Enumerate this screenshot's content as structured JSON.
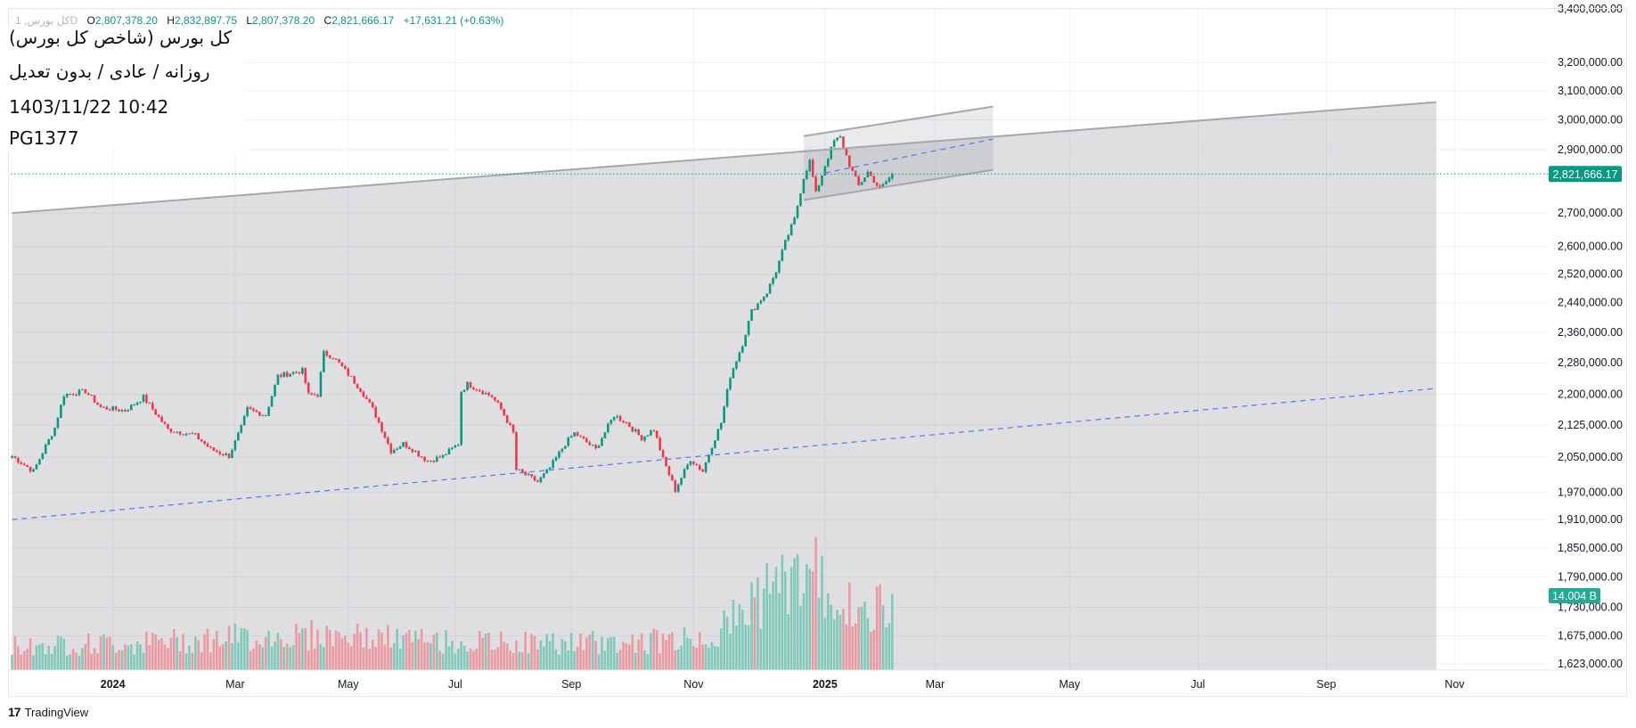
{
  "legend": {
    "symbol": "کل بورس, 1D",
    "open_label": "O",
    "open": "2,807,378.20",
    "high_label": "H",
    "high": "2,832,897.75",
    "low_label": "L",
    "low": "2,807,378.20",
    "close_label": "C",
    "close": "2,821,666.17",
    "change": "+17,631.21 (+0.63%)"
  },
  "overlay": {
    "title": "کل بورس (شاخص کل بورس)",
    "subtitle": "روزانه / عادی / بدون تعدیل",
    "datetime": "1403/11/22 10:42",
    "code": "PG1377"
  },
  "branding": {
    "name": "TradingView",
    "logo_mark": "17"
  },
  "colors": {
    "up": "#089981",
    "down": "#f23645",
    "up_vol": "#7fcab9",
    "down_vol": "#ec9aa1",
    "price_label": "#089981",
    "vol_label": "#22ab94",
    "trend_dashed": "#5b7ff0"
  },
  "chart_data": {
    "type": "candlestick",
    "scale": "log",
    "ylim": [
      1623000,
      3400000
    ],
    "y_ticks": [
      "3,400,000.00",
      "3,200,000.00",
      "3,100,000.00",
      "3,000,000.00",
      "2,900,000.00",
      "2,700,000.00",
      "2,600,000.00",
      "2,520,000.00",
      "2,440,000.00",
      "2,360,000.00",
      "2,280,000.00",
      "2,200,000.00",
      "2,125,000.00",
      "2,050,000.00",
      "1,970,000.00",
      "1,910,000.00",
      "1,850,000.00",
      "1,790,000.00",
      "1,730,000.00",
      "1,675,000.00",
      "1,623,000.00"
    ],
    "x_ticks": [
      {
        "label": "2024",
        "bar": 33
      },
      {
        "label": "Mar",
        "bar": 73
      },
      {
        "label": "May",
        "bar": 110
      },
      {
        "label": "Jul",
        "bar": 145
      },
      {
        "label": "Sep",
        "bar": 183
      },
      {
        "label": "Nov",
        "bar": 223
      },
      {
        "label": "2025",
        "bar": 266
      },
      {
        "label": "Mar",
        "bar": 302
      },
      {
        "label": "May",
        "bar": 346
      },
      {
        "label": "Jul",
        "bar": 388
      },
      {
        "label": "Sep",
        "bar": 430
      },
      {
        "label": "Nov",
        "bar": 472
      }
    ],
    "bar_count": 289,
    "close_path": [
      [
        0,
        2052000
      ],
      [
        7,
        2017000
      ],
      [
        14,
        2119000
      ],
      [
        17,
        2199000
      ],
      [
        24,
        2208000
      ],
      [
        29,
        2168000
      ],
      [
        37,
        2160000
      ],
      [
        43,
        2193000
      ],
      [
        48,
        2144000
      ],
      [
        51,
        2115000
      ],
      [
        60,
        2100000
      ],
      [
        65,
        2068000
      ],
      [
        71,
        2052000
      ],
      [
        75,
        2119000
      ],
      [
        77,
        2164000
      ],
      [
        83,
        2149000
      ],
      [
        87,
        2246000
      ],
      [
        95,
        2260000
      ],
      [
        97,
        2199000
      ],
      [
        100,
        2199000
      ],
      [
        102,
        2305000
      ],
      [
        105,
        2296000
      ],
      [
        109,
        2260000
      ],
      [
        114,
        2212000
      ],
      [
        118,
        2164000
      ],
      [
        121,
        2115000
      ],
      [
        124,
        2064000
      ],
      [
        128,
        2081000
      ],
      [
        131,
        2068000
      ],
      [
        136,
        2040000
      ],
      [
        141,
        2052000
      ],
      [
        146,
        2081000
      ],
      [
        147,
        2208000
      ],
      [
        149,
        2226000
      ],
      [
        157,
        2195000
      ],
      [
        160,
        2164000
      ],
      [
        164,
        2106000
      ],
      [
        165,
        2021000
      ],
      [
        172,
        1993000
      ],
      [
        176,
        2025000
      ],
      [
        181,
        2081000
      ],
      [
        184,
        2106000
      ],
      [
        191,
        2068000
      ],
      [
        197,
        2149000
      ],
      [
        201,
        2131000
      ],
      [
        206,
        2094000
      ],
      [
        210,
        2115000
      ],
      [
        213,
        2045000
      ],
      [
        217,
        1975000
      ],
      [
        222,
        2045000
      ],
      [
        226,
        2017000
      ],
      [
        228,
        2058000
      ],
      [
        232,
        2131000
      ],
      [
        235,
        2246000
      ],
      [
        239,
        2329000
      ],
      [
        242,
        2417000
      ],
      [
        247,
        2469000
      ],
      [
        250,
        2529000
      ],
      [
        253,
        2612000
      ],
      [
        256,
        2681000
      ],
      [
        259,
        2811000
      ],
      [
        261,
        2863000
      ],
      [
        263,
        2760000
      ],
      [
        266,
        2850000
      ],
      [
        269,
        2929000
      ],
      [
        271,
        2940000
      ],
      [
        274,
        2850000
      ],
      [
        277,
        2785000
      ],
      [
        280,
        2828000
      ],
      [
        284,
        2773000
      ],
      [
        288,
        2821666.17
      ]
    ],
    "volume_path_billions": [
      [
        0,
        4.5
      ],
      [
        40,
        5
      ],
      [
        75,
        6
      ],
      [
        100,
        6.5
      ],
      [
        150,
        5
      ],
      [
        200,
        5
      ],
      [
        228,
        6
      ],
      [
        236,
        9
      ],
      [
        242,
        13
      ],
      [
        250,
        15
      ],
      [
        258,
        18
      ],
      [
        264,
        17
      ],
      [
        272,
        12
      ],
      [
        280,
        9
      ],
      [
        288,
        14.004
      ]
    ],
    "last_price_label": "2,821,666.17",
    "last_volume_label": "14.004 B",
    "drawings": {
      "main_channel_top": [
        [
          0,
          2700000
        ],
        [
          466,
          3060000
        ]
      ],
      "main_channel_dashed": [
        [
          0,
          1910000
        ],
        [
          466,
          2215000
        ]
      ],
      "small_channel_top": [
        [
          259,
          2945000
        ],
        [
          321,
          3045000
        ]
      ],
      "small_channel_bottom": [
        [
          259,
          2740000
        ],
        [
          321,
          2835000
        ]
      ],
      "small_channel_dashed": [
        [
          266,
          2825000
        ],
        [
          321,
          2935000
        ]
      ]
    }
  }
}
